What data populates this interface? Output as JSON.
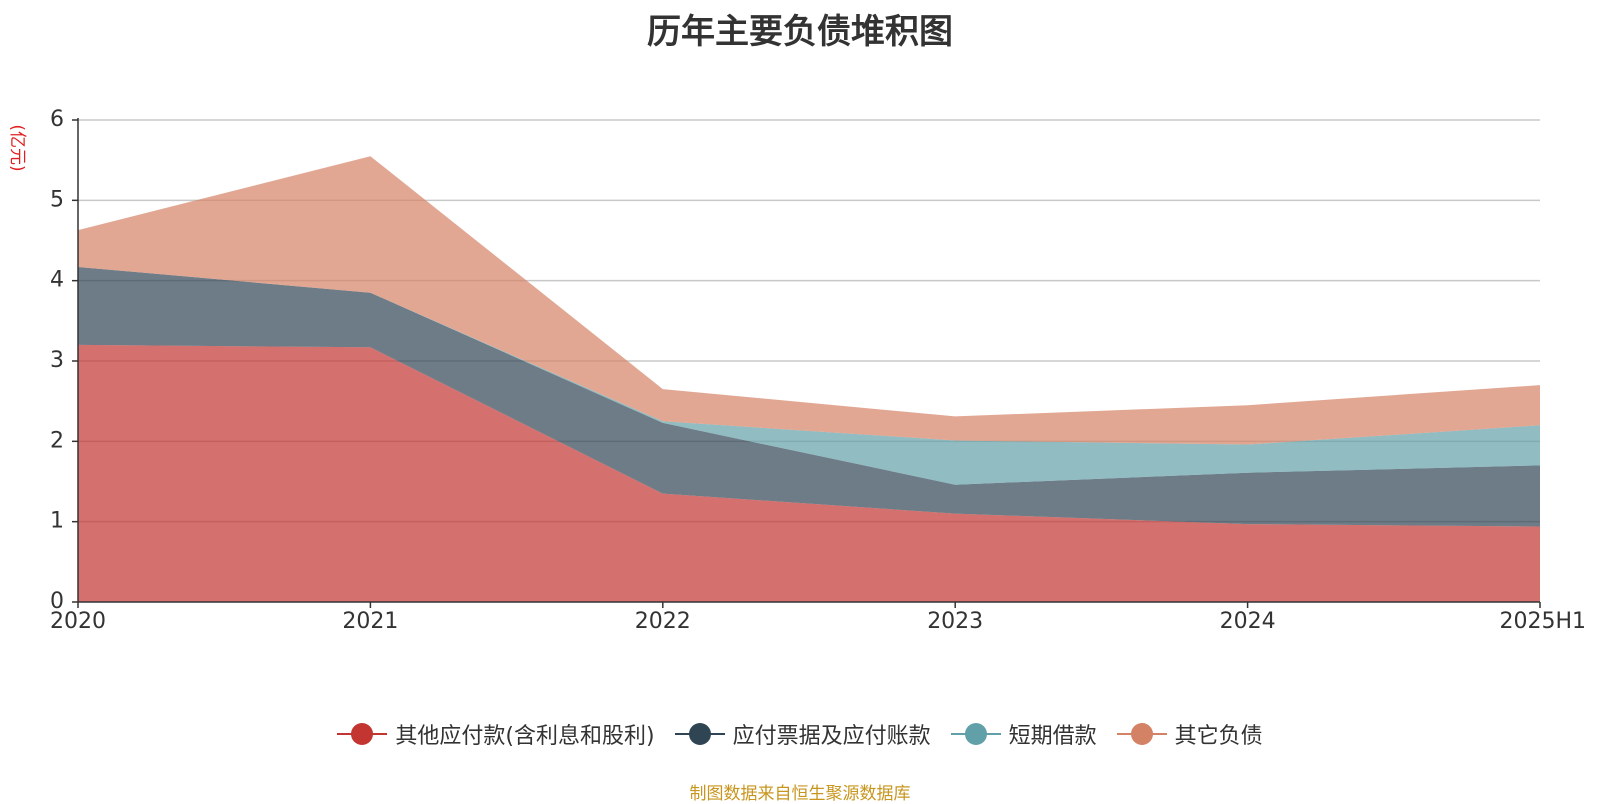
{
  "chart_data": {
    "type": "area",
    "stacked": true,
    "title": "历年主要负债堆积图",
    "ylabel": "(亿元)",
    "xlabel": "",
    "categories": [
      "2020",
      "2021",
      "2022",
      "2023",
      "2024",
      "2025H1"
    ],
    "ylim": [
      0,
      6
    ],
    "yticks": [
      0,
      1,
      2,
      3,
      4,
      5,
      6
    ],
    "grid": true,
    "legend_position": "bottom",
    "series": [
      {
        "name": "其他应付款(含利息和股利)",
        "color": "#c23531",
        "values": [
          3.2,
          3.17,
          1.35,
          1.1,
          0.97,
          0.94
        ]
      },
      {
        "name": "应付票据及应付账款",
        "color": "#2f4554",
        "values": [
          0.97,
          0.68,
          0.88,
          0.36,
          0.64,
          0.76
        ]
      },
      {
        "name": "短期借款",
        "color": "#61a0a8",
        "values": [
          0,
          0,
          0.02,
          0.55,
          0.35,
          0.5
        ]
      },
      {
        "name": "其它负债",
        "color": "#d48265",
        "values": [
          0.46,
          1.7,
          0.4,
          0.3,
          0.49,
          0.5
        ]
      }
    ],
    "source_note": "制图数据来自恒生聚源数据库"
  }
}
